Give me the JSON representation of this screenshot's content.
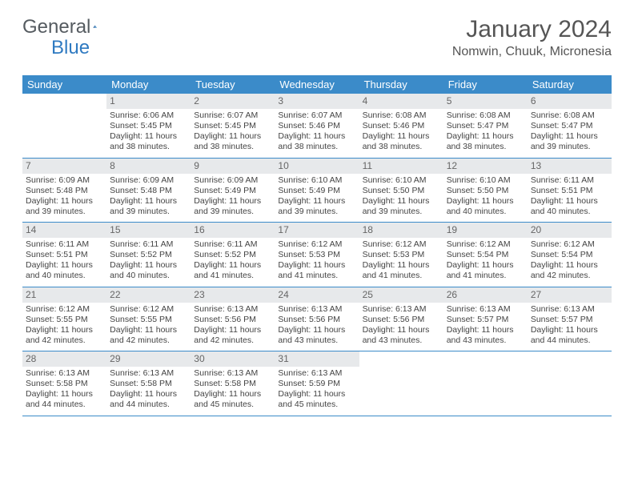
{
  "logo": {
    "word1": "General",
    "word2": "Blue"
  },
  "title": "January 2024",
  "location": "Nomwin, Chuuk, Micronesia",
  "colors": {
    "header_bg": "#3b8bc9",
    "header_text": "#ffffff",
    "daynum_bg": "#e7e9eb",
    "rule": "#3b8bc9",
    "body_text": "#444444",
    "logo_gray": "#555b60",
    "logo_blue": "#2f7ac1"
  },
  "weekdays": [
    "Sunday",
    "Monday",
    "Tuesday",
    "Wednesday",
    "Thursday",
    "Friday",
    "Saturday"
  ],
  "weeks": [
    [
      {
        "n": "",
        "lines": []
      },
      {
        "n": "1",
        "lines": [
          "Sunrise: 6:06 AM",
          "Sunset: 5:45 PM",
          "Daylight: 11 hours",
          "and 38 minutes."
        ]
      },
      {
        "n": "2",
        "lines": [
          "Sunrise: 6:07 AM",
          "Sunset: 5:45 PM",
          "Daylight: 11 hours",
          "and 38 minutes."
        ]
      },
      {
        "n": "3",
        "lines": [
          "Sunrise: 6:07 AM",
          "Sunset: 5:46 PM",
          "Daylight: 11 hours",
          "and 38 minutes."
        ]
      },
      {
        "n": "4",
        "lines": [
          "Sunrise: 6:08 AM",
          "Sunset: 5:46 PM",
          "Daylight: 11 hours",
          "and 38 minutes."
        ]
      },
      {
        "n": "5",
        "lines": [
          "Sunrise: 6:08 AM",
          "Sunset: 5:47 PM",
          "Daylight: 11 hours",
          "and 38 minutes."
        ]
      },
      {
        "n": "6",
        "lines": [
          "Sunrise: 6:08 AM",
          "Sunset: 5:47 PM",
          "Daylight: 11 hours",
          "and 39 minutes."
        ]
      }
    ],
    [
      {
        "n": "7",
        "lines": [
          "Sunrise: 6:09 AM",
          "Sunset: 5:48 PM",
          "Daylight: 11 hours",
          "and 39 minutes."
        ]
      },
      {
        "n": "8",
        "lines": [
          "Sunrise: 6:09 AM",
          "Sunset: 5:48 PM",
          "Daylight: 11 hours",
          "and 39 minutes."
        ]
      },
      {
        "n": "9",
        "lines": [
          "Sunrise: 6:09 AM",
          "Sunset: 5:49 PM",
          "Daylight: 11 hours",
          "and 39 minutes."
        ]
      },
      {
        "n": "10",
        "lines": [
          "Sunrise: 6:10 AM",
          "Sunset: 5:49 PM",
          "Daylight: 11 hours",
          "and 39 minutes."
        ]
      },
      {
        "n": "11",
        "lines": [
          "Sunrise: 6:10 AM",
          "Sunset: 5:50 PM",
          "Daylight: 11 hours",
          "and 39 minutes."
        ]
      },
      {
        "n": "12",
        "lines": [
          "Sunrise: 6:10 AM",
          "Sunset: 5:50 PM",
          "Daylight: 11 hours",
          "and 40 minutes."
        ]
      },
      {
        "n": "13",
        "lines": [
          "Sunrise: 6:11 AM",
          "Sunset: 5:51 PM",
          "Daylight: 11 hours",
          "and 40 minutes."
        ]
      }
    ],
    [
      {
        "n": "14",
        "lines": [
          "Sunrise: 6:11 AM",
          "Sunset: 5:51 PM",
          "Daylight: 11 hours",
          "and 40 minutes."
        ]
      },
      {
        "n": "15",
        "lines": [
          "Sunrise: 6:11 AM",
          "Sunset: 5:52 PM",
          "Daylight: 11 hours",
          "and 40 minutes."
        ]
      },
      {
        "n": "16",
        "lines": [
          "Sunrise: 6:11 AM",
          "Sunset: 5:52 PM",
          "Daylight: 11 hours",
          "and 41 minutes."
        ]
      },
      {
        "n": "17",
        "lines": [
          "Sunrise: 6:12 AM",
          "Sunset: 5:53 PM",
          "Daylight: 11 hours",
          "and 41 minutes."
        ]
      },
      {
        "n": "18",
        "lines": [
          "Sunrise: 6:12 AM",
          "Sunset: 5:53 PM",
          "Daylight: 11 hours",
          "and 41 minutes."
        ]
      },
      {
        "n": "19",
        "lines": [
          "Sunrise: 6:12 AM",
          "Sunset: 5:54 PM",
          "Daylight: 11 hours",
          "and 41 minutes."
        ]
      },
      {
        "n": "20",
        "lines": [
          "Sunrise: 6:12 AM",
          "Sunset: 5:54 PM",
          "Daylight: 11 hours",
          "and 42 minutes."
        ]
      }
    ],
    [
      {
        "n": "21",
        "lines": [
          "Sunrise: 6:12 AM",
          "Sunset: 5:55 PM",
          "Daylight: 11 hours",
          "and 42 minutes."
        ]
      },
      {
        "n": "22",
        "lines": [
          "Sunrise: 6:12 AM",
          "Sunset: 5:55 PM",
          "Daylight: 11 hours",
          "and 42 minutes."
        ]
      },
      {
        "n": "23",
        "lines": [
          "Sunrise: 6:13 AM",
          "Sunset: 5:56 PM",
          "Daylight: 11 hours",
          "and 42 minutes."
        ]
      },
      {
        "n": "24",
        "lines": [
          "Sunrise: 6:13 AM",
          "Sunset: 5:56 PM",
          "Daylight: 11 hours",
          "and 43 minutes."
        ]
      },
      {
        "n": "25",
        "lines": [
          "Sunrise: 6:13 AM",
          "Sunset: 5:56 PM",
          "Daylight: 11 hours",
          "and 43 minutes."
        ]
      },
      {
        "n": "26",
        "lines": [
          "Sunrise: 6:13 AM",
          "Sunset: 5:57 PM",
          "Daylight: 11 hours",
          "and 43 minutes."
        ]
      },
      {
        "n": "27",
        "lines": [
          "Sunrise: 6:13 AM",
          "Sunset: 5:57 PM",
          "Daylight: 11 hours",
          "and 44 minutes."
        ]
      }
    ],
    [
      {
        "n": "28",
        "lines": [
          "Sunrise: 6:13 AM",
          "Sunset: 5:58 PM",
          "Daylight: 11 hours",
          "and 44 minutes."
        ]
      },
      {
        "n": "29",
        "lines": [
          "Sunrise: 6:13 AM",
          "Sunset: 5:58 PM",
          "Daylight: 11 hours",
          "and 44 minutes."
        ]
      },
      {
        "n": "30",
        "lines": [
          "Sunrise: 6:13 AM",
          "Sunset: 5:58 PM",
          "Daylight: 11 hours",
          "and 45 minutes."
        ]
      },
      {
        "n": "31",
        "lines": [
          "Sunrise: 6:13 AM",
          "Sunset: 5:59 PM",
          "Daylight: 11 hours",
          "and 45 minutes."
        ]
      },
      {
        "n": "",
        "lines": []
      },
      {
        "n": "",
        "lines": []
      },
      {
        "n": "",
        "lines": []
      }
    ]
  ]
}
